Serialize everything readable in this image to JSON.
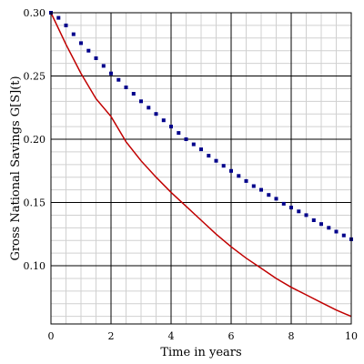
{
  "chart_data": {
    "type": "line",
    "title": "",
    "xlabel": "Time in years",
    "ylabel": "Gross National Savings G[S](t)",
    "xlim": [
      0,
      10
    ],
    "ylim": [
      0.054,
      0.3
    ],
    "x_ticks": [
      0,
      2,
      4,
      6,
      8,
      10
    ],
    "y_ticks": [
      0.1,
      0.15,
      0.2,
      0.25,
      0.3
    ],
    "x_tick_labels": [
      "0",
      "2",
      "4",
      "6",
      "8",
      "10"
    ],
    "y_tick_labels": [
      "0.10",
      "0.15",
      "0.20",
      "0.25",
      "0.30"
    ],
    "grid": true,
    "legend": "none",
    "series": [
      {
        "style": "line",
        "color": "#c00000",
        "x": [
          0,
          0.5,
          1,
          1.5,
          2,
          2.5,
          3,
          3.5,
          4,
          4.5,
          5,
          5.5,
          6,
          6.5,
          7,
          7.5,
          8,
          8.5,
          9,
          9.5,
          10
        ],
        "y": [
          0.3,
          0.275,
          0.252,
          0.232,
          0.218,
          0.198,
          0.183,
          0.17,
          0.158,
          0.147,
          0.136,
          0.125,
          0.115,
          0.106,
          0.098,
          0.09,
          0.083,
          0.077,
          0.071,
          0.065,
          0.06
        ]
      },
      {
        "style": "dots",
        "color": "#00008b",
        "x": [
          0,
          0.25,
          0.5,
          0.75,
          1,
          1.25,
          1.5,
          1.75,
          2,
          2.25,
          2.5,
          2.75,
          3,
          3.25,
          3.5,
          3.75,
          4,
          4.25,
          4.5,
          4.75,
          5,
          5.25,
          5.5,
          5.75,
          6,
          6.25,
          6.5,
          6.75,
          7,
          7.25,
          7.5,
          7.75,
          8,
          8.25,
          8.5,
          8.75,
          9,
          9.25,
          9.5,
          9.75,
          10
        ],
        "y": [
          0.3,
          0.296,
          0.29,
          0.283,
          0.276,
          0.27,
          0.264,
          0.258,
          0.252,
          0.247,
          0.241,
          0.236,
          0.23,
          0.225,
          0.22,
          0.215,
          0.21,
          0.205,
          0.2,
          0.196,
          0.192,
          0.187,
          0.183,
          0.179,
          0.175,
          0.171,
          0.167,
          0.163,
          0.16,
          0.156,
          0.153,
          0.149,
          0.146,
          0.143,
          0.14,
          0.136,
          0.133,
          0.13,
          0.127,
          0.124,
          0.121
        ]
      }
    ]
  }
}
